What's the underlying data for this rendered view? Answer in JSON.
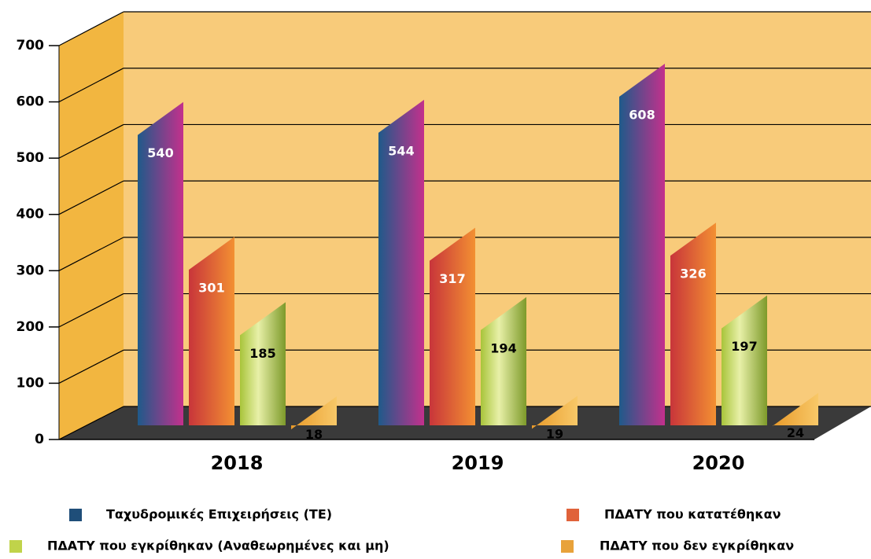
{
  "chart_data": {
    "type": "bar3d",
    "categories": [
      "2018",
      "2019",
      "2020"
    ],
    "series": [
      {
        "name": "Ταχυδρομικές Επιχειρήσεις (ΤΕ)",
        "color": "#1f4e79",
        "label_color": "#ffffff",
        "values": [
          540,
          544,
          608
        ]
      },
      {
        "name": "ΠΔΑΤΥ που κατατέθηκαν",
        "color": "#e0623a",
        "label_color": "#ffffff",
        "values": [
          301,
          317,
          326
        ]
      },
      {
        "name": "ΠΔΑΤΥ που εγκρίθηκαν (Αναθεωρημένες και μη)",
        "color": "#c0d34a",
        "label_color": "#000000",
        "values": [
          185,
          194,
          197
        ]
      },
      {
        "name": "ΠΔΑΤΥ που δεν εγκρίθηκαν",
        "color": "#e8a23a",
        "label_color": "#000000",
        "values": [
          18,
          19,
          24
        ]
      }
    ],
    "ylim": [
      0,
      700
    ],
    "yticks": [
      0,
      100,
      200,
      300,
      400,
      500,
      600,
      700
    ],
    "grid": true
  }
}
